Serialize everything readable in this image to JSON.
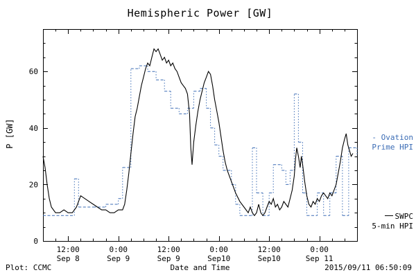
{
  "title": "Hemispheric Power [GW]",
  "ylabel": "P [GW]",
  "footer": {
    "plot_credit": "Plot: CCMC",
    "xlabel": "Date and Time",
    "timestamp": "2015/09/11 06:50:09"
  },
  "legend": {
    "ovation_line1": "- Ovation",
    "ovation_line2": "Prime HPI",
    "swpc_line1": "SWPC",
    "swpc_line2": "5-min HPI"
  },
  "chart_data": {
    "type": "line",
    "title": "Hemispheric Power [GW]",
    "xlabel": "Date and Time",
    "ylabel": "P [GW]",
    "x_unit": "hours since Sep 8 00:00",
    "xlim": [
      6,
      81
    ],
    "ylim": [
      0,
      75
    ],
    "grid": false,
    "x_minor_step": 3,
    "y_minor_step": 5,
    "x_ticks": [
      {
        "v": 12,
        "time": "12:00",
        "date": "Sep 8"
      },
      {
        "v": 24,
        "time": "0:00",
        "date": "Sep 9"
      },
      {
        "v": 36,
        "time": "12:00",
        "date": "Sep 9"
      },
      {
        "v": 48,
        "time": "0:00",
        "date": "Sep10"
      },
      {
        "v": 60,
        "time": "12:00",
        "date": "Sep10"
      },
      {
        "v": 72,
        "time": "0:00",
        "date": "Sep 11"
      }
    ],
    "y_ticks": [
      0,
      20,
      40,
      60
    ],
    "series": [
      {
        "name": "Ovation Prime HPI",
        "color": "#3b6cb5",
        "style": "step-dashed",
        "points": [
          [
            6,
            9
          ],
          [
            13.5,
            22
          ],
          [
            14.5,
            12
          ],
          [
            18,
            12
          ],
          [
            21,
            13
          ],
          [
            24,
            15
          ],
          [
            25,
            26
          ],
          [
            27,
            61
          ],
          [
            29,
            62
          ],
          [
            31,
            60
          ],
          [
            33,
            57
          ],
          [
            35,
            53
          ],
          [
            36.5,
            47
          ],
          [
            38.5,
            45
          ],
          [
            40.5,
            47
          ],
          [
            42,
            53
          ],
          [
            43.5,
            54
          ],
          [
            45,
            47
          ],
          [
            46,
            40
          ],
          [
            47,
            34
          ],
          [
            48,
            30
          ],
          [
            49,
            25
          ],
          [
            51,
            20
          ],
          [
            52,
            13
          ],
          [
            53,
            9
          ],
          [
            56,
            33
          ],
          [
            57,
            17
          ],
          [
            58.5,
            9
          ],
          [
            60,
            17
          ],
          [
            61,
            27
          ],
          [
            63,
            25
          ],
          [
            64,
            20
          ],
          [
            65,
            25
          ],
          [
            66,
            52
          ],
          [
            67,
            35
          ],
          [
            68,
            17
          ],
          [
            69,
            9
          ],
          [
            71.5,
            17
          ],
          [
            73,
            9
          ],
          [
            74.5,
            17
          ],
          [
            76,
            30
          ],
          [
            77.5,
            9
          ],
          [
            79,
            33
          ],
          [
            81,
            30
          ]
        ]
      },
      {
        "name": "SWPC 5-min HPI",
        "color": "#000000",
        "style": "solid",
        "points": [
          [
            6,
            30
          ],
          [
            6.5,
            26
          ],
          [
            7,
            20
          ],
          [
            7.5,
            15
          ],
          [
            8,
            12
          ],
          [
            9,
            10
          ],
          [
            10,
            10
          ],
          [
            11,
            11
          ],
          [
            12,
            10
          ],
          [
            13,
            10
          ],
          [
            14,
            12
          ],
          [
            15,
            16
          ],
          [
            16,
            15
          ],
          [
            17,
            14
          ],
          [
            18,
            13
          ],
          [
            19,
            12
          ],
          [
            20,
            11
          ],
          [
            21,
            11
          ],
          [
            22,
            10
          ],
          [
            23,
            10
          ],
          [
            24,
            11
          ],
          [
            25,
            11
          ],
          [
            25.5,
            13
          ],
          [
            26,
            18
          ],
          [
            26.5,
            24
          ],
          [
            27,
            31
          ],
          [
            27.5,
            38
          ],
          [
            28,
            44
          ],
          [
            28.5,
            47
          ],
          [
            29,
            51
          ],
          [
            29.5,
            55
          ],
          [
            30,
            58
          ],
          [
            30.5,
            61
          ],
          [
            31,
            63
          ],
          [
            31.5,
            62
          ],
          [
            32,
            65
          ],
          [
            32.5,
            68
          ],
          [
            33,
            67
          ],
          [
            33.5,
            68
          ],
          [
            34,
            66
          ],
          [
            34.5,
            64
          ],
          [
            35,
            65
          ],
          [
            35.5,
            63
          ],
          [
            36,
            64
          ],
          [
            36.5,
            62
          ],
          [
            37,
            63
          ],
          [
            37.5,
            61
          ],
          [
            38,
            60
          ],
          [
            38.5,
            58
          ],
          [
            39,
            56
          ],
          [
            39.5,
            55
          ],
          [
            40,
            54
          ],
          [
            40.5,
            52
          ],
          [
            41,
            45
          ],
          [
            41.3,
            33
          ],
          [
            41.6,
            27
          ],
          [
            42,
            35
          ],
          [
            42.5,
            41
          ],
          [
            43,
            46
          ],
          [
            43.5,
            50
          ],
          [
            44,
            53
          ],
          [
            44.5,
            56
          ],
          [
            45,
            58
          ],
          [
            45.5,
            60
          ],
          [
            46,
            59
          ],
          [
            46.5,
            55
          ],
          [
            47,
            50
          ],
          [
            47.5,
            46
          ],
          [
            48,
            42
          ],
          [
            48.5,
            37
          ],
          [
            49,
            32
          ],
          [
            49.5,
            28
          ],
          [
            50,
            25
          ],
          [
            51,
            21
          ],
          [
            52,
            17
          ],
          [
            53,
            14
          ],
          [
            54,
            12
          ],
          [
            55,
            10
          ],
          [
            55.5,
            12
          ],
          [
            56,
            10
          ],
          [
            56.5,
            9
          ],
          [
            57,
            10
          ],
          [
            57.5,
            13
          ],
          [
            58,
            10
          ],
          [
            58.5,
            9
          ],
          [
            59,
            10
          ],
          [
            59.5,
            12
          ],
          [
            60,
            14
          ],
          [
            60.5,
            13
          ],
          [
            61,
            15
          ],
          [
            61.5,
            12
          ],
          [
            62,
            13
          ],
          [
            62.5,
            11
          ],
          [
            63,
            12
          ],
          [
            63.5,
            14
          ],
          [
            64,
            13
          ],
          [
            64.5,
            12
          ],
          [
            65,
            15
          ],
          [
            65.5,
            18
          ],
          [
            66,
            23
          ],
          [
            66.3,
            29
          ],
          [
            66.6,
            33
          ],
          [
            67,
            30
          ],
          [
            67.4,
            26
          ],
          [
            67.7,
            30
          ],
          [
            68,
            27
          ],
          [
            68.5,
            21
          ],
          [
            69,
            16
          ],
          [
            69.5,
            13
          ],
          [
            70,
            12
          ],
          [
            70.5,
            14
          ],
          [
            71,
            13
          ],
          [
            71.5,
            15
          ],
          [
            72,
            14
          ],
          [
            72.5,
            16
          ],
          [
            73,
            17
          ],
          [
            73.5,
            16
          ],
          [
            74,
            15
          ],
          [
            74.5,
            17
          ],
          [
            75,
            16
          ],
          [
            75.5,
            18
          ],
          [
            76,
            20
          ],
          [
            76.5,
            24
          ],
          [
            77,
            28
          ],
          [
            77.5,
            33
          ],
          [
            78,
            36
          ],
          [
            78.4,
            38
          ],
          [
            78.8,
            34
          ],
          [
            79.2,
            32
          ],
          [
            79.6,
            30
          ],
          [
            80,
            31
          ]
        ]
      }
    ]
  }
}
